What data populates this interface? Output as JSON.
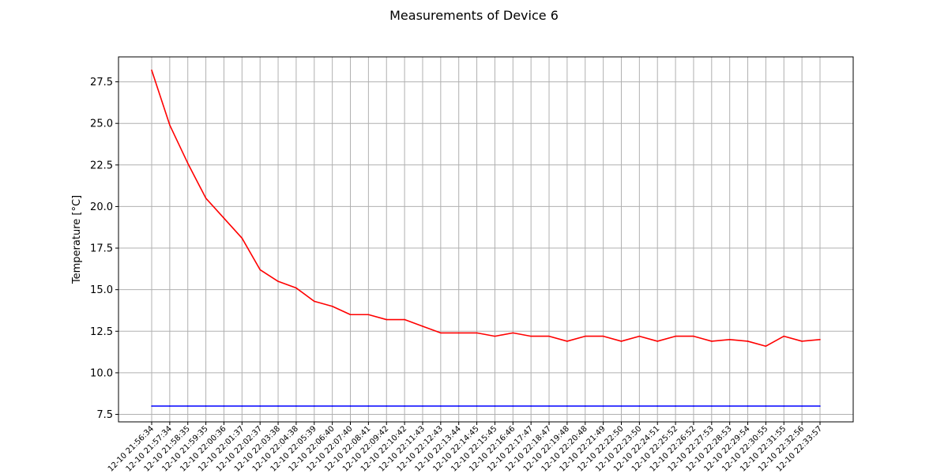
{
  "chart_data": {
    "type": "line",
    "title": "Measurements of Device 6",
    "xlabel": "",
    "ylabel": "Temperature [°C]",
    "ylim": [
      7.05,
      29.0
    ],
    "yticks": [
      7.5,
      10.0,
      12.5,
      15.0,
      17.5,
      20.0,
      22.5,
      25.0,
      27.5
    ],
    "grid": true,
    "x": [
      "12-10 21:56:34",
      "12-10 21:57:34",
      "12-10 21:58:35",
      "12-10 21:59:35",
      "12-10 22:00:36",
      "12-10 22:01:37",
      "12-10 22:02:37",
      "12-10 22:03:38",
      "12-10 22:04:38",
      "12-10 22:05:39",
      "12-10 22:06:40",
      "12-10 22:07:40",
      "12-10 22:08:41",
      "12-10 22:09:42",
      "12-10 22:10:42",
      "12-10 22:11:43",
      "12-10 22:12:43",
      "12-10 22:13:44",
      "12-10 22:14:45",
      "12-10 22:15:45",
      "12-10 22:16:46",
      "12-10 22:17:47",
      "12-10 22:18:47",
      "12-10 22:19:48",
      "12-10 22:20:48",
      "12-10 22:21:49",
      "12-10 22:22:50",
      "12-10 22:23:50",
      "12-10 22:24:51",
      "12-10 22:25:52",
      "12-10 22:26:52",
      "12-10 22:27:53",
      "12-10 22:28:53",
      "12-10 22:29:54",
      "12-10 22:30:55",
      "12-10 22:31:55",
      "12-10 22:32:56",
      "12-10 22:33:57"
    ],
    "series": [
      {
        "color": "#ff0000",
        "values": [
          28.2,
          24.9,
          22.6,
          20.5,
          19.3,
          18.1,
          16.2,
          15.5,
          15.1,
          14.3,
          14.0,
          13.5,
          13.5,
          13.2,
          13.2,
          12.8,
          12.4,
          12.4,
          12.4,
          12.2,
          12.4,
          12.2,
          12.2,
          11.9,
          12.2,
          12.2,
          11.9,
          12.2,
          11.9,
          12.2,
          12.2,
          11.9,
          12.0,
          11.9,
          11.6,
          12.2,
          11.9,
          12.0
        ]
      },
      {
        "color": "#0000ff",
        "values": [
          8.0,
          8.0,
          8.0,
          8.0,
          8.0,
          8.0,
          8.0,
          8.0,
          8.0,
          8.0,
          8.0,
          8.0,
          8.0,
          8.0,
          8.0,
          8.0,
          8.0,
          8.0,
          8.0,
          8.0,
          8.0,
          8.0,
          8.0,
          8.0,
          8.0,
          8.0,
          8.0,
          8.0,
          8.0,
          8.0,
          8.0,
          8.0,
          8.0,
          8.0,
          8.0,
          8.0,
          8.0,
          8.0
        ]
      }
    ]
  }
}
